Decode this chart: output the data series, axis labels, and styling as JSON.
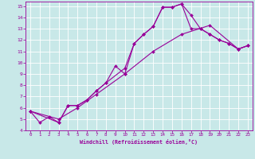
{
  "xlabel": "Windchill (Refroidissement éolien,°C)",
  "bg_color": "#c8e8e8",
  "line_color": "#990099",
  "grid_color": "#ffffff",
  "xlim": [
    -0.5,
    23.5
  ],
  "ylim": [
    4,
    15.4
  ],
  "xticks": [
    0,
    1,
    2,
    3,
    4,
    5,
    6,
    7,
    8,
    9,
    10,
    11,
    12,
    13,
    14,
    15,
    16,
    17,
    18,
    19,
    20,
    21,
    22,
    23
  ],
  "yticks": [
    4,
    5,
    6,
    7,
    8,
    9,
    10,
    11,
    12,
    13,
    14,
    15
  ],
  "line1_x": [
    0,
    1,
    2,
    3,
    4,
    5,
    6,
    7,
    8,
    9,
    10,
    11,
    12,
    13,
    14,
    15,
    16,
    17,
    18,
    19,
    20,
    21,
    22,
    23
  ],
  "line1_y": [
    5.7,
    4.7,
    5.2,
    4.7,
    6.2,
    6.2,
    6.7,
    7.5,
    8.2,
    9.7,
    9.0,
    11.7,
    12.5,
    13.2,
    14.9,
    14.9,
    15.2,
    14.2,
    13.0,
    12.5,
    12.0,
    11.7,
    11.2,
    11.5
  ],
  "line2_x": [
    0,
    3,
    4,
    5,
    6,
    7,
    8,
    10,
    11,
    12,
    13,
    14,
    15,
    16,
    17,
    18,
    19,
    20,
    21,
    22,
    23
  ],
  "line2_y": [
    5.7,
    4.7,
    6.2,
    6.2,
    6.7,
    7.5,
    8.2,
    9.5,
    11.7,
    12.5,
    13.2,
    14.9,
    14.9,
    15.2,
    13.0,
    13.0,
    12.5,
    12.0,
    11.7,
    11.2,
    11.5
  ],
  "line3_x": [
    0,
    3,
    5,
    7,
    10,
    13,
    16,
    19,
    22,
    23
  ],
  "line3_y": [
    5.7,
    5.0,
    6.0,
    7.2,
    9.0,
    11.0,
    12.5,
    13.3,
    11.2,
    11.5
  ]
}
